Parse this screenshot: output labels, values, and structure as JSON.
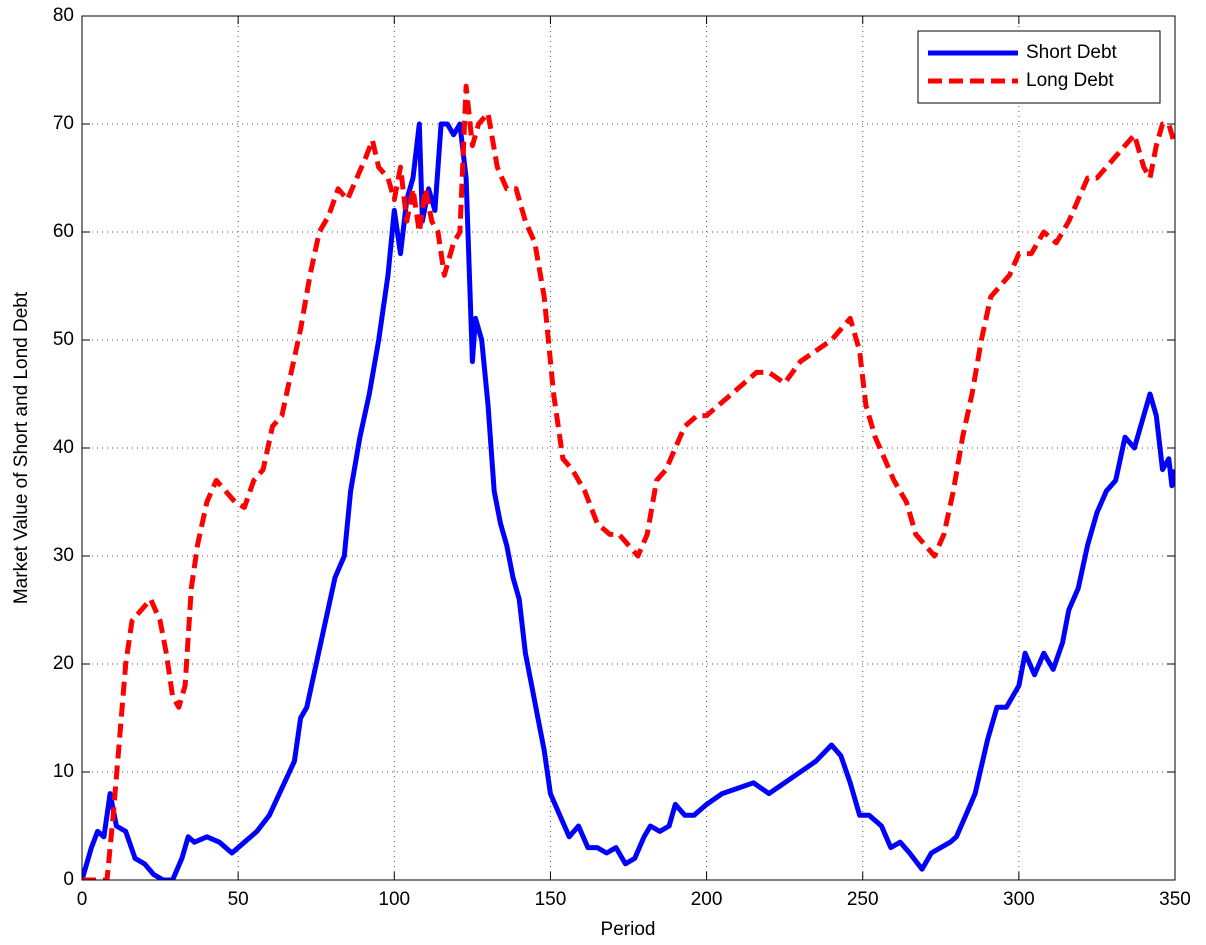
{
  "chart_data": {
    "type": "line",
    "xlabel": "Period",
    "ylabel": "Market Value of Short and Lond Debt",
    "xlim": [
      0,
      350
    ],
    "ylim": [
      0,
      80
    ],
    "xticks": [
      0,
      50,
      100,
      150,
      200,
      250,
      300,
      350
    ],
    "yticks": [
      0,
      10,
      20,
      30,
      40,
      50,
      60,
      70,
      80
    ],
    "grid": true,
    "legend": "upper right",
    "series": [
      {
        "name": "Short Debt",
        "color": "#0000ff",
        "style": "solid",
        "x": [
          0,
          3,
          5,
          7,
          9,
          11,
          14,
          17,
          20,
          23,
          26,
          29,
          32,
          34,
          36,
          40,
          44,
          48,
          52,
          56,
          60,
          64,
          68,
          70,
          72,
          75,
          78,
          81,
          84,
          86,
          89,
          92,
          95,
          98,
          100,
          102,
          104,
          106,
          108,
          109,
          111,
          113,
          115,
          117,
          119,
          121,
          123,
          125,
          126,
          128,
          130,
          132,
          134,
          136,
          138,
          140,
          142,
          144,
          146,
          148,
          150,
          153,
          156,
          159,
          162,
          165,
          168,
          171,
          174,
          177,
          180,
          182,
          185,
          188,
          190,
          193,
          196,
          200,
          205,
          210,
          215,
          220,
          225,
          230,
          235,
          240,
          243,
          246,
          249,
          252,
          256,
          259,
          262,
          265,
          269,
          272,
          275,
          278,
          280,
          283,
          286,
          290,
          293,
          296,
          300,
          302,
          305,
          308,
          311,
          314,
          316,
          319,
          322,
          325,
          328,
          331,
          334,
          337,
          339,
          342,
          344,
          346,
          348,
          349,
          350
        ],
        "values": [
          0,
          3,
          4.5,
          4,
          8,
          5,
          4.5,
          2,
          1.5,
          0.5,
          0,
          0,
          2,
          4,
          3.5,
          4,
          3.5,
          2.5,
          3.5,
          4.5,
          6,
          8.5,
          11,
          15,
          16,
          20,
          24,
          28,
          30,
          36,
          41,
          45,
          50,
          56,
          62,
          58,
          63,
          65,
          70,
          61,
          64,
          62,
          70,
          70,
          69,
          70,
          65,
          48,
          52,
          50,
          44,
          36,
          33,
          31,
          28,
          26,
          21,
          18,
          15,
          12,
          8,
          6,
          4,
          5,
          3,
          3,
          2.5,
          3,
          1.5,
          2,
          4,
          5,
          4.5,
          5,
          7,
          6,
          6,
          7,
          8,
          8.5,
          9,
          8,
          9,
          10,
          11,
          12.5,
          11.5,
          9,
          6,
          6,
          5,
          3,
          3.5,
          2.5,
          1,
          2.5,
          3,
          3.5,
          4,
          6,
          8,
          13,
          16,
          16,
          18,
          21,
          19,
          21,
          19.5,
          22,
          25,
          27,
          31,
          34,
          36,
          37,
          41,
          40,
          42,
          45,
          43,
          38,
          39,
          36.5,
          38
        ]
      },
      {
        "name": "Long Debt",
        "color": "#ff0000",
        "style": "dashed",
        "x": [
          0,
          5,
          8,
          10,
          12,
          14,
          16,
          19,
          22,
          25,
          27,
          29,
          31,
          33,
          35,
          37,
          40,
          43,
          46,
          49,
          52,
          55,
          58,
          61,
          64,
          67,
          70,
          73,
          76,
          79,
          82,
          85,
          88,
          91,
          93,
          95,
          98,
          100,
          102,
          104,
          106,
          108,
          110,
          112,
          114,
          116,
          119,
          121,
          123,
          125,
          127,
          130,
          133,
          136,
          139,
          142,
          145,
          148,
          151,
          154,
          157,
          161,
          165,
          169,
          172,
          175,
          178,
          181,
          184,
          187,
          190,
          193,
          197,
          200,
          204,
          208,
          212,
          216,
          220,
          225,
          230,
          235,
          240,
          243,
          246,
          249,
          251,
          254,
          257,
          260,
          264,
          267,
          270,
          273,
          276,
          279,
          282,
          285,
          288,
          291,
          294,
          297,
          300,
          304,
          308,
          312,
          316,
          319,
          322,
          325,
          328,
          331,
          334,
          337,
          340,
          342,
          344,
          346,
          348,
          350
        ],
        "values": [
          0,
          0,
          0,
          6,
          13,
          20,
          24,
          25,
          26,
          24,
          21,
          17,
          16,
          18,
          27,
          31,
          35,
          37,
          36,
          35,
          34.5,
          37,
          38,
          42,
          43,
          47,
          51,
          56,
          60,
          61.5,
          64,
          63,
          65,
          67,
          68.5,
          66,
          65,
          63,
          66,
          61,
          64,
          60,
          64,
          61,
          60,
          56,
          59,
          60,
          73.5,
          68,
          70,
          71,
          66,
          64,
          64,
          61,
          59,
          54,
          45,
          39,
          38,
          36,
          33,
          32,
          32,
          31,
          30,
          32,
          37,
          38,
          40,
          42,
          43,
          43,
          44,
          45,
          46,
          47,
          47,
          46,
          48,
          49,
          50,
          51,
          52,
          49,
          44,
          41,
          39,
          37,
          35,
          32,
          31,
          30,
          32,
          36,
          41,
          45,
          50,
          54,
          55,
          56,
          58,
          58,
          60,
          59,
          61,
          63,
          65,
          65,
          66,
          67,
          68,
          69,
          66,
          65,
          68,
          70,
          70,
          68
        ]
      }
    ]
  }
}
